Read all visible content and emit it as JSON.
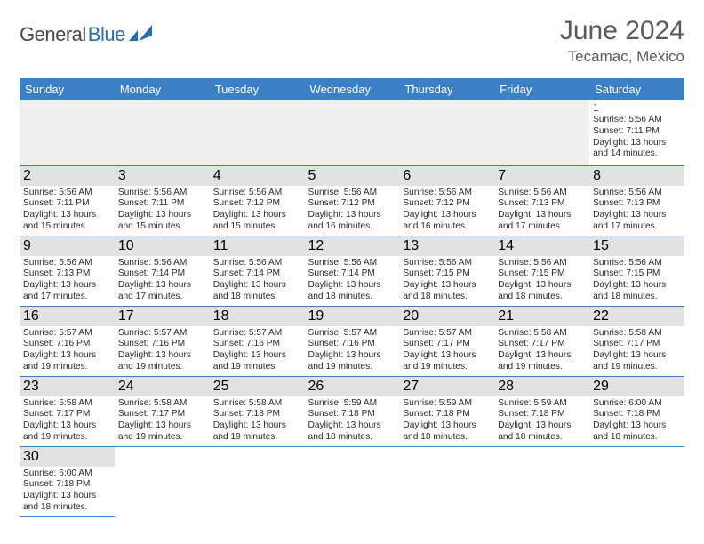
{
  "brand": {
    "name_main": "General",
    "name_sub": "Blue"
  },
  "title": {
    "month_year": "June 2024",
    "location": "Tecamac, Mexico"
  },
  "colors": {
    "header_bg": "#3b7fc4",
    "header_text": "#ffffff",
    "border": "#3b7fc4",
    "daynum_band": "#e2e2e2",
    "blank_lead": "#f0f0f0",
    "text": "#2a2a2a"
  },
  "weekdays": [
    "Sunday",
    "Monday",
    "Tuesday",
    "Wednesday",
    "Thursday",
    "Friday",
    "Saturday"
  ],
  "layout": {
    "leading_blanks": 6,
    "trailing_blanks": 6
  },
  "days": [
    {
      "n": 1,
      "sunrise": "5:56 AM",
      "sunset": "7:11 PM",
      "daylight": "13 hours and 14 minutes."
    },
    {
      "n": 2,
      "sunrise": "5:56 AM",
      "sunset": "7:11 PM",
      "daylight": "13 hours and 15 minutes."
    },
    {
      "n": 3,
      "sunrise": "5:56 AM",
      "sunset": "7:11 PM",
      "daylight": "13 hours and 15 minutes."
    },
    {
      "n": 4,
      "sunrise": "5:56 AM",
      "sunset": "7:12 PM",
      "daylight": "13 hours and 15 minutes."
    },
    {
      "n": 5,
      "sunrise": "5:56 AM",
      "sunset": "7:12 PM",
      "daylight": "13 hours and 16 minutes."
    },
    {
      "n": 6,
      "sunrise": "5:56 AM",
      "sunset": "7:12 PM",
      "daylight": "13 hours and 16 minutes."
    },
    {
      "n": 7,
      "sunrise": "5:56 AM",
      "sunset": "7:13 PM",
      "daylight": "13 hours and 17 minutes."
    },
    {
      "n": 8,
      "sunrise": "5:56 AM",
      "sunset": "7:13 PM",
      "daylight": "13 hours and 17 minutes."
    },
    {
      "n": 9,
      "sunrise": "5:56 AM",
      "sunset": "7:13 PM",
      "daylight": "13 hours and 17 minutes."
    },
    {
      "n": 10,
      "sunrise": "5:56 AM",
      "sunset": "7:14 PM",
      "daylight": "13 hours and 17 minutes."
    },
    {
      "n": 11,
      "sunrise": "5:56 AM",
      "sunset": "7:14 PM",
      "daylight": "13 hours and 18 minutes."
    },
    {
      "n": 12,
      "sunrise": "5:56 AM",
      "sunset": "7:14 PM",
      "daylight": "13 hours and 18 minutes."
    },
    {
      "n": 13,
      "sunrise": "5:56 AM",
      "sunset": "7:15 PM",
      "daylight": "13 hours and 18 minutes."
    },
    {
      "n": 14,
      "sunrise": "5:56 AM",
      "sunset": "7:15 PM",
      "daylight": "13 hours and 18 minutes."
    },
    {
      "n": 15,
      "sunrise": "5:56 AM",
      "sunset": "7:15 PM",
      "daylight": "13 hours and 18 minutes."
    },
    {
      "n": 16,
      "sunrise": "5:57 AM",
      "sunset": "7:16 PM",
      "daylight": "13 hours and 19 minutes."
    },
    {
      "n": 17,
      "sunrise": "5:57 AM",
      "sunset": "7:16 PM",
      "daylight": "13 hours and 19 minutes."
    },
    {
      "n": 18,
      "sunrise": "5:57 AM",
      "sunset": "7:16 PM",
      "daylight": "13 hours and 19 minutes."
    },
    {
      "n": 19,
      "sunrise": "5:57 AM",
      "sunset": "7:16 PM",
      "daylight": "13 hours and 19 minutes."
    },
    {
      "n": 20,
      "sunrise": "5:57 AM",
      "sunset": "7:17 PM",
      "daylight": "13 hours and 19 minutes."
    },
    {
      "n": 21,
      "sunrise": "5:58 AM",
      "sunset": "7:17 PM",
      "daylight": "13 hours and 19 minutes."
    },
    {
      "n": 22,
      "sunrise": "5:58 AM",
      "sunset": "7:17 PM",
      "daylight": "13 hours and 19 minutes."
    },
    {
      "n": 23,
      "sunrise": "5:58 AM",
      "sunset": "7:17 PM",
      "daylight": "13 hours and 19 minutes."
    },
    {
      "n": 24,
      "sunrise": "5:58 AM",
      "sunset": "7:17 PM",
      "daylight": "13 hours and 19 minutes."
    },
    {
      "n": 25,
      "sunrise": "5:58 AM",
      "sunset": "7:18 PM",
      "daylight": "13 hours and 19 minutes."
    },
    {
      "n": 26,
      "sunrise": "5:59 AM",
      "sunset": "7:18 PM",
      "daylight": "13 hours and 18 minutes."
    },
    {
      "n": 27,
      "sunrise": "5:59 AM",
      "sunset": "7:18 PM",
      "daylight": "13 hours and 18 minutes."
    },
    {
      "n": 28,
      "sunrise": "5:59 AM",
      "sunset": "7:18 PM",
      "daylight": "13 hours and 18 minutes."
    },
    {
      "n": 29,
      "sunrise": "6:00 AM",
      "sunset": "7:18 PM",
      "daylight": "13 hours and 18 minutes."
    },
    {
      "n": 30,
      "sunrise": "6:00 AM",
      "sunset": "7:18 PM",
      "daylight": "13 hours and 18 minutes."
    }
  ],
  "labels": {
    "sunrise": "Sunrise:",
    "sunset": "Sunset:",
    "daylight": "Daylight:"
  }
}
